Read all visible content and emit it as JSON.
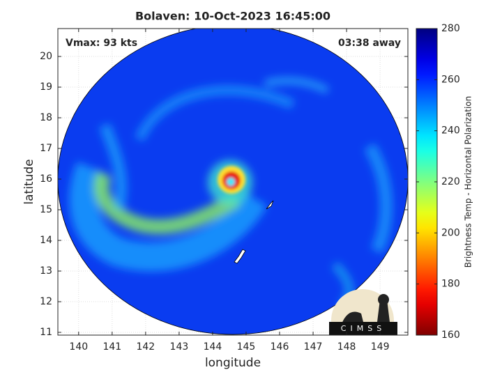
{
  "chart_data": {
    "type": "image",
    "title": "Bolaven: 10-Oct-2023 16:45:00",
    "annotations": [
      "Vmax: 93 kts",
      "03:38 away"
    ],
    "x_label": "longitude",
    "y_label": "latitude",
    "xlim": [
      139.38,
      149.83
    ],
    "xticks": [
      140,
      141,
      142,
      143,
      144,
      145,
      146,
      147,
      148,
      149
    ],
    "ylim": [
      10.91,
      20.91
    ],
    "yticks": [
      11,
      12,
      13,
      14,
      15,
      16,
      17,
      18,
      19,
      20
    ],
    "grid": true,
    "colorbar": {
      "label": "Brightness Temp - Horizontal Polarization",
      "colormap": "jet_r",
      "lim": [
        160,
        280
      ],
      "ticks": [
        160,
        180,
        200,
        220,
        240,
        260,
        280
      ]
    },
    "logo_text": "CIMSS"
  }
}
